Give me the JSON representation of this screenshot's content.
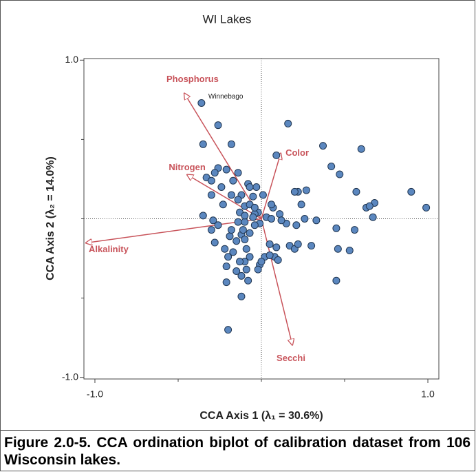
{
  "chart_data": {
    "type": "biplot",
    "title": "WI Lakes",
    "xlabel": "CCA Axis 1 (λ₁ = 30.6%)",
    "ylabel": "CCA Axis 2 (λ₂ = 14.0%)",
    "xlim": [
      -1.066,
      1.066
    ],
    "ylim": [
      -1.01,
      1.01
    ],
    "xticks": [
      {
        "value": -1.0,
        "label": "-1.0"
      },
      {
        "value": 1.0,
        "label": "1.0"
      }
    ],
    "yticks": [
      {
        "value": -1.0,
        "label": "-1.0"
      },
      {
        "value": 1.0,
        "label": "1.0"
      }
    ],
    "xminor": [
      -0.5,
      0,
      0.5
    ],
    "yminor": [
      -0.5,
      0,
      0.5
    ],
    "point_color": "#5b87bf",
    "vector_color": "#c8535a",
    "x": [
      -0.36,
      -0.26,
      0.16,
      -0.35,
      -0.18,
      0.37,
      0.6,
      0.09,
      0.42,
      0.47,
      -0.26,
      -0.28,
      -0.33,
      -0.21,
      -0.14,
      -0.3,
      -0.17,
      -0.08,
      -0.03,
      -0.07,
      -0.12,
      -0.05,
      -0.14,
      0.01,
      0.22,
      0.27,
      0.2,
      0.57,
      0.9,
      -0.3,
      -0.23,
      -0.1,
      -0.07,
      -0.02,
      -0.04,
      0.07,
      0.24,
      0.63,
      0.68,
      0.65,
      0.99,
      -0.35,
      -0.13,
      -0.05,
      0.03,
      0.11,
      0.06,
      0.15,
      0.26,
      0.33,
      0.67,
      -0.01,
      -0.04,
      -0.1,
      -0.14,
      -0.28,
      -0.19,
      -0.12,
      -0.15,
      -0.07,
      -0.1,
      -0.3,
      -0.22,
      -0.17,
      -0.2,
      -0.09,
      -0.07,
      -0.1,
      -0.13,
      0.05,
      0.09,
      0.17,
      0.2,
      0.08,
      0.02,
      0.05,
      -0.01,
      -0.21,
      -0.15,
      -0.02,
      -0.08,
      -0.21,
      -0.12,
      0.53,
      0.46,
      0.45,
      -0.2,
      0.56,
      0.45,
      -0.26,
      -0.11,
      -0.29,
      -0.18,
      0.3,
      0.22,
      0.1,
      0.0,
      -0.09,
      -0.12,
      -0.18,
      -0.24,
      -0.1,
      -0.04,
      0.06,
      0.12,
      0.21
    ],
    "y": [
      0.73,
      0.59,
      0.6,
      0.47,
      0.47,
      0.46,
      0.44,
      0.4,
      0.33,
      0.28,
      0.32,
      0.29,
      0.26,
      0.31,
      0.29,
      0.24,
      0.24,
      0.22,
      0.2,
      0.2,
      0.15,
      0.14,
      0.12,
      0.15,
      0.17,
      0.18,
      0.17,
      0.17,
      0.17,
      0.15,
      0.09,
      0.08,
      0.09,
      0.04,
      0.03,
      0.07,
      0.09,
      0.07,
      0.1,
      0.08,
      0.07,
      0.02,
      0.04,
      0.01,
      0.01,
      0.03,
      0.0,
      -0.03,
      0.0,
      -0.01,
      0.01,
      -0.03,
      -0.04,
      -0.02,
      -0.02,
      -0.15,
      -0.11,
      -0.1,
      -0.14,
      -0.09,
      -0.13,
      -0.07,
      -0.19,
      -0.21,
      -0.24,
      -0.19,
      -0.24,
      -0.27,
      -0.27,
      -0.16,
      -0.18,
      -0.17,
      -0.19,
      -0.24,
      -0.24,
      -0.23,
      -0.29,
      -0.3,
      -0.33,
      -0.32,
      -0.39,
      -0.4,
      -0.49,
      -0.2,
      -0.19,
      -0.39,
      -0.7,
      -0.07,
      -0.06,
      -0.04,
      -0.07,
      -0.01,
      -0.07,
      -0.17,
      -0.16,
      -0.26,
      -0.27,
      -0.32,
      -0.36,
      0.15,
      0.2,
      0.02,
      0.07,
      0.09,
      -0.01,
      -0.04
    ],
    "vectors": [
      {
        "name": "Phosphorus",
        "x": -0.463,
        "y": 0.791
      },
      {
        "name": "Nitrogen",
        "x": -0.446,
        "y": 0.278
      },
      {
        "name": "Alkalinity",
        "x": -1.054,
        "y": -0.152
      },
      {
        "name": "Color",
        "x": 0.116,
        "y": 0.413
      },
      {
        "name": "Secchi",
        "x": 0.186,
        "y": -0.796
      }
    ],
    "annotations": [
      {
        "text": "Winnebago",
        "x": -0.36,
        "y": 0.73
      }
    ]
  },
  "caption": "Figure 2.0-5. CCA ordination biplot of calibration dataset from 106 Wisconsin lakes."
}
